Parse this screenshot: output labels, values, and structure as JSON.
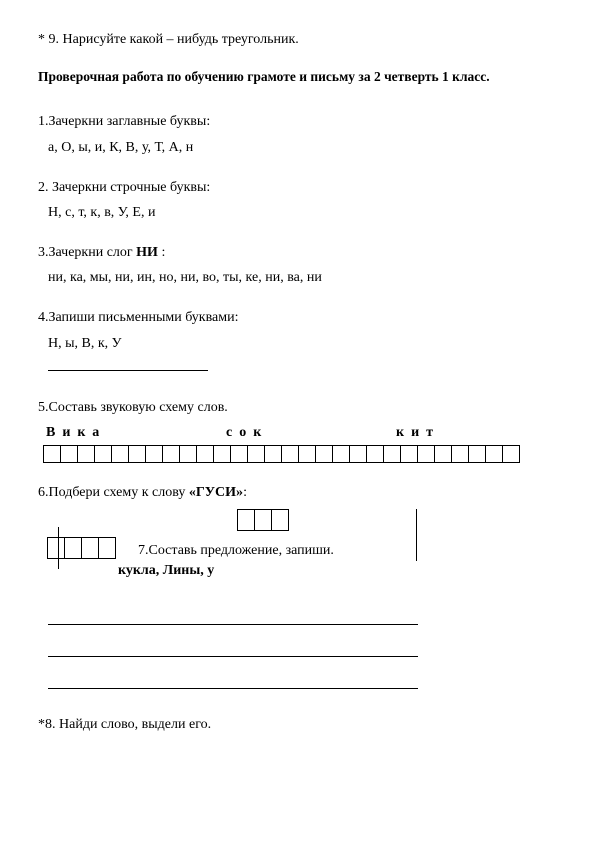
{
  "header": {
    "q9": "* 9.   Нарисуйте какой – нибудь треугольник."
  },
  "title": "Проверочная работа по обучению грамоте и письму за 2 четверть 1 класс.",
  "tasks": {
    "t1": {
      "prompt": "1.Зачеркни заглавные буквы:",
      "letters": "а,   О,  ы,   и,   К,  В,  у, Т, А,  н"
    },
    "t2": {
      "prompt": "2. Зачеркни строчные буквы:",
      "letters": "Н,   с,  т,  к,  в,  У,  Е,  и"
    },
    "t3": {
      "prompt_pre": "3.Зачеркни слог ",
      "prompt_bold": "НИ",
      "prompt_post": " :",
      "letters": "ни,  ка,  мы,  ни,  ин,  но,  ни,  во,  ты,  ке,  ни,  ва,  ни"
    },
    "t4": {
      "prompt": "4.Запиши письменными буквами:",
      "letters": "Н,  ы,  В,  к,   У"
    },
    "t5": {
      "prompt": "5.Составь звуковую схему слов.",
      "word1": "Вика",
      "word2": "сок",
      "word3": "кит",
      "cell_count": 28
    },
    "t6": {
      "prompt_pre": "6.Подбери схему к слову ",
      "prompt_bold": "«ГУСИ»",
      "prompt_post": ":",
      "scheme_top_cells": 3,
      "scheme_left_cells": 4
    },
    "t7": {
      "prompt": "7.Составь предложение, запиши.",
      "words": "кукла,   Лины, у"
    },
    "t8": {
      "prompt": "*8.  Найди слово, выдели его."
    }
  },
  "colors": {
    "text": "#000000",
    "bg": "#ffffff",
    "line": "#000000"
  }
}
